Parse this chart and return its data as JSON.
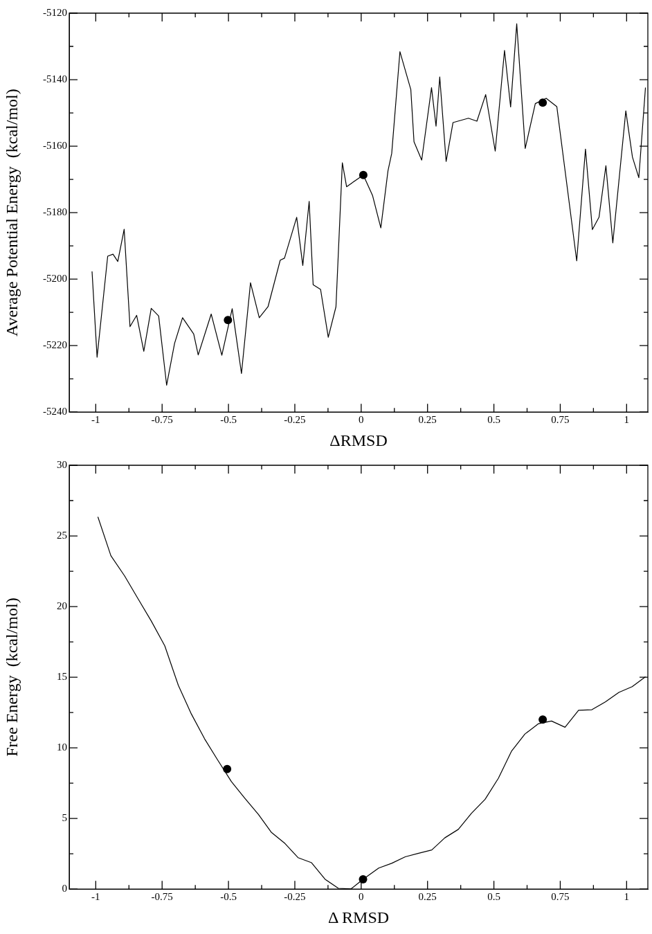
{
  "chart_data": [
    {
      "type": "line",
      "xlabel": "ΔRMSD",
      "ylabel": "Average Potential Energy  (kcal/mol)",
      "xlim": [
        -1.1,
        1.08
      ],
      "ylim": [
        -5240,
        -5120
      ],
      "xticks": [
        -1,
        {
          "value": -0.875,
          "label": null
        },
        -0.75,
        {
          "value": -0.625,
          "label": null
        },
        -0.5,
        {
          "value": -0.375,
          "label": null
        },
        -0.25,
        {
          "value": -0.125,
          "label": null
        },
        0,
        {
          "value": 0.125,
          "label": null
        },
        0.25,
        {
          "value": 0.375,
          "label": null
        },
        0.5,
        {
          "value": 0.625,
          "label": null
        },
        0.75,
        {
          "value": 0.875,
          "label": null
        },
        1
      ],
      "yticks": [
        -5240,
        {
          "value": -5230,
          "label": null
        },
        -5220,
        {
          "value": -5210,
          "label": null
        },
        -5200,
        {
          "value": -5190,
          "label": null
        },
        -5180,
        {
          "value": -5170,
          "label": null
        },
        -5160,
        {
          "value": -5150,
          "label": null
        },
        -5140,
        {
          "value": -5130,
          "label": null
        },
        -5120
      ],
      "grid": false,
      "legend": false,
      "series": [
        {
          "type": "line",
          "color": "#000000",
          "marker": "none",
          "line_style": "solid",
          "x": [
            -1.014,
            -0.995,
            -0.955,
            -0.935,
            -0.917,
            -0.893,
            -0.871,
            -0.846,
            -0.819,
            -0.791,
            -0.763,
            -0.733,
            -0.703,
            -0.673,
            -0.631,
            -0.614,
            -0.565,
            -0.525,
            -0.486,
            -0.451,
            -0.417,
            -0.384,
            -0.351,
            -0.305,
            -0.289,
            -0.243,
            -0.22,
            -0.196,
            -0.181,
            -0.153,
            -0.124,
            -0.095,
            -0.071,
            -0.055,
            0.008,
            0.043,
            0.074,
            0.101,
            0.115,
            0.146,
            0.187,
            0.199,
            0.228,
            0.265,
            0.282,
            0.296,
            0.32,
            0.346,
            0.404,
            0.436,
            0.469,
            0.505,
            0.54,
            0.563,
            0.586,
            0.618,
            0.656,
            0.697,
            0.737,
            0.812,
            0.845,
            0.871,
            0.896,
            0.922,
            0.948,
            0.997,
            1.022,
            1.046,
            1.071
          ],
          "values": [
            -5197.7,
            -5223.5,
            -5193.1,
            -5192.5,
            -5194.7,
            -5185,
            -5214.3,
            -5210.9,
            -5221.7,
            -5208.8,
            -5211.1,
            -5231.9,
            -5219.3,
            -5211.6,
            -5216.5,
            -5222.8,
            -5210.5,
            -5222.9,
            -5208.9,
            -5228.4,
            -5201.1,
            -5211.6,
            -5208.3,
            -5194.3,
            -5193.7,
            -5181.4,
            -5195.9,
            -5176.6,
            -5201.7,
            -5203.1,
            -5217.5,
            -5208.3,
            -5165,
            -5172.2,
            -5168.7,
            -5174.9,
            -5184.6,
            -5167.4,
            -5162.2,
            -5131.6,
            -5143,
            -5158.7,
            -5164.2,
            -5142.4,
            -5154,
            -5139.2,
            -5164.6,
            -5152.9,
            -5151.6,
            -5152.5,
            -5144.5,
            -5161.5,
            -5131.2,
            -5148.2,
            -5123.2,
            -5160.7,
            -5147.2,
            -5145.6,
            -5148.1,
            -5194.5,
            -5160.9,
            -5185.1,
            -5181.4,
            -5165.9,
            -5189.1,
            -5149.4,
            -5163.3,
            -5169.5,
            -5142.4
          ]
        },
        {
          "type": "scatter",
          "color": "#000000",
          "marker": "circle",
          "x": [
            -0.502,
            0.008,
            0.684
          ],
          "values": [
            -5212.3,
            -5168.7,
            -5146.9
          ]
        }
      ]
    },
    {
      "type": "line",
      "xlabel": "Δ RMSD",
      "ylabel": "Free Energy  (kcal/mol)",
      "xlim": [
        -1.1,
        1.08
      ],
      "ylim": [
        0,
        30
      ],
      "xticks": [
        -1,
        {
          "value": -0.875,
          "label": null
        },
        -0.75,
        {
          "value": -0.625,
          "label": null
        },
        -0.5,
        {
          "value": -0.375,
          "label": null
        },
        -0.25,
        {
          "value": -0.125,
          "label": null
        },
        0,
        {
          "value": 0.125,
          "label": null
        },
        0.25,
        {
          "value": 0.375,
          "label": null
        },
        0.5,
        {
          "value": 0.625,
          "label": null
        },
        0.75,
        {
          "value": 0.875,
          "label": null
        },
        1
      ],
      "yticks": [
        0,
        {
          "value": 2.5,
          "label": null
        },
        5,
        {
          "value": 7.5,
          "label": null
        },
        10,
        {
          "value": 12.5,
          "label": null
        },
        15,
        {
          "value": 17.5,
          "label": null
        },
        20,
        {
          "value": 22.5,
          "label": null
        },
        25,
        {
          "value": 27.5,
          "label": null
        },
        30
      ],
      "grid": false,
      "legend": false,
      "series": [
        {
          "type": "line",
          "color": "#000000",
          "marker": "none",
          "line_style": "solid",
          "x": [
            -0.992,
            -0.943,
            -0.891,
            -0.84,
            -0.791,
            -0.74,
            -0.689,
            -0.64,
            -0.59,
            -0.541,
            -0.489,
            -0.438,
            -0.387,
            -0.339,
            -0.287,
            -0.238,
            -0.187,
            -0.136,
            -0.086,
            -0.038,
            0.007,
            0.066,
            0.115,
            0.166,
            0.214,
            0.266,
            0.315,
            0.366,
            0.415,
            0.467,
            0.517,
            0.566,
            0.617,
            0.667,
            0.717,
            0.768,
            0.819,
            0.869,
            0.92,
            0.971,
            1.021,
            1.071
          ],
          "values": [
            26.35,
            23.6,
            22.16,
            20.53,
            18.98,
            17.22,
            14.43,
            12.4,
            10.64,
            9.15,
            7.61,
            6.42,
            5.28,
            4.03,
            3.23,
            2.23,
            1.87,
            0.7,
            0.06,
            0.02,
            0.7,
            1.49,
            1.83,
            2.29,
            2.53,
            2.77,
            3.63,
            4.23,
            5.36,
            6.36,
            7.85,
            9.75,
            10.98,
            11.7,
            11.9,
            11.46,
            12.66,
            12.7,
            13.25,
            13.93,
            14.33,
            15.03
          ]
        },
        {
          "type": "scatter",
          "color": "#000000",
          "marker": "circle",
          "x": [
            -0.505,
            0.007,
            0.684
          ],
          "values": [
            8.5,
            0.7,
            12.0
          ]
        }
      ]
    }
  ]
}
